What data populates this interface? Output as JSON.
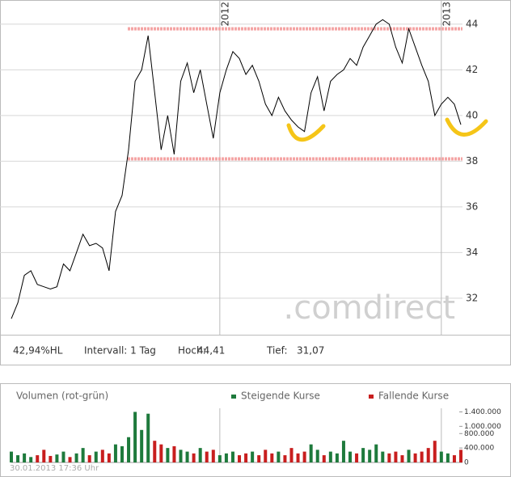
{
  "chart_data": [
    {
      "type": "line",
      "categories": [
        null,
        null,
        null,
        null,
        null,
        null,
        null,
        null,
        null,
        null,
        null,
        null,
        null,
        null,
        null,
        null,
        null,
        null,
        null,
        null,
        null,
        null,
        null,
        null,
        null,
        null,
        null,
        null,
        null,
        null,
        null,
        null,
        "2012",
        null,
        null,
        null,
        null,
        null,
        null,
        null,
        null,
        null,
        null,
        null,
        null,
        null,
        null,
        null,
        null,
        null,
        null,
        null,
        null,
        null,
        null,
        null,
        null,
        null,
        null,
        null,
        null,
        null,
        null,
        null,
        null,
        null,
        "2013",
        null,
        null,
        null
      ],
      "values": [
        31.1,
        31.8,
        33.0,
        33.2,
        32.6,
        32.5,
        32.4,
        32.5,
        33.5,
        33.2,
        34.0,
        34.8,
        34.3,
        34.4,
        34.2,
        33.2,
        35.8,
        36.5,
        38.5,
        41.5,
        42.0,
        43.5,
        41.0,
        38.5,
        40.0,
        38.3,
        41.5,
        42.3,
        41.0,
        42.0,
        40.5,
        39.0,
        41.0,
        42.0,
        42.8,
        42.5,
        41.8,
        42.2,
        41.5,
        40.5,
        40.0,
        40.8,
        40.2,
        39.8,
        39.5,
        39.3,
        41.0,
        41.7,
        40.2,
        41.5,
        41.8,
        42.0,
        42.5,
        42.2,
        43.0,
        43.5,
        44.0,
        44.2,
        44.0,
        43.0,
        42.3,
        43.8,
        43.0,
        42.2,
        41.5,
        40.0,
        40.5,
        40.8,
        40.5,
        39.6
      ],
      "color": "#000000",
      "ylim": [
        30.4,
        45.06
      ],
      "yticks": [
        32,
        34,
        36,
        38,
        40,
        42,
        44
      ],
      "grid": true,
      "hlines": [
        {
          "value": 43.8,
          "color": "#f4a5a5"
        },
        {
          "value": 38.1,
          "color": "#f4a5a5"
        }
      ],
      "watermark": ".comdirect",
      "info": [
        "42,94%HL",
        "Intervall: 1 Tag",
        "Hoch:",
        "44,41",
        "Tief:",
        "31,07"
      ]
    },
    {
      "type": "bar",
      "title": "Volumen (rot-grün)",
      "series": [
        {
          "name": "Steigende Kurse",
          "color": "#1e7a3c",
          "values": [
            300000,
            200000,
            250000,
            150000,
            null,
            null,
            null,
            220000,
            300000,
            null,
            250000,
            400000,
            null,
            300000,
            null,
            null,
            500000,
            450000,
            700000,
            1400000,
            900000,
            1350000,
            null,
            null,
            400000,
            null,
            350000,
            300000,
            null,
            400000,
            null,
            null,
            200000,
            250000,
            300000,
            null,
            null,
            300000,
            null,
            null,
            null,
            300000,
            null,
            null,
            null,
            null,
            500000,
            350000,
            null,
            300000,
            250000,
            600000,
            300000,
            null,
            400000,
            350000,
            500000,
            300000,
            null,
            null,
            null,
            350000,
            null,
            null,
            null,
            null,
            300000,
            250000,
            null,
            null
          ]
        },
        {
          "name": "Fallende Kurse",
          "color": "#c81e1e",
          "values": [
            null,
            null,
            null,
            null,
            200000,
            350000,
            180000,
            null,
            null,
            150000,
            null,
            null,
            200000,
            null,
            350000,
            250000,
            null,
            null,
            null,
            null,
            null,
            null,
            600000,
            500000,
            null,
            450000,
            null,
            null,
            250000,
            null,
            300000,
            350000,
            null,
            null,
            null,
            200000,
            250000,
            null,
            200000,
            350000,
            250000,
            null,
            200000,
            400000,
            250000,
            300000,
            null,
            null,
            200000,
            null,
            null,
            null,
            null,
            250000,
            null,
            null,
            null,
            null,
            250000,
            300000,
            200000,
            null,
            250000,
            300000,
            400000,
            600000,
            null,
            null,
            200000,
            350000
          ]
        }
      ],
      "ylim": [
        0,
        1500000
      ],
      "yticks": [
        0,
        {
          "value": 400000,
          "label": "400.000"
        },
        {
          "value": 800000,
          "label": "800.000"
        },
        {
          "value": 1000000,
          "label": "1.000.000"
        },
        {
          "value": 1400000,
          "label": "1.400.000"
        }
      ],
      "legend": "top-right",
      "footnote": "30.01.2013 17:36 Uhr"
    }
  ]
}
